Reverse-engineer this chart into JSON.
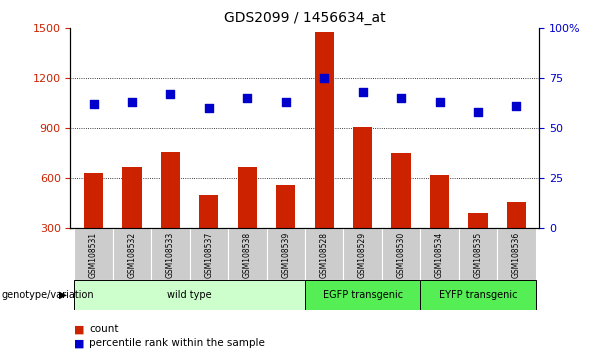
{
  "title": "GDS2099 / 1456634_at",
  "samples": [
    "GSM108531",
    "GSM108532",
    "GSM108533",
    "GSM108537",
    "GSM108538",
    "GSM108539",
    "GSM108528",
    "GSM108529",
    "GSM108530",
    "GSM108534",
    "GSM108535",
    "GSM108536"
  ],
  "counts": [
    630,
    670,
    760,
    500,
    670,
    560,
    1480,
    910,
    750,
    620,
    390,
    460
  ],
  "percentiles": [
    62,
    63,
    67,
    60,
    65,
    63,
    75,
    68,
    65,
    63,
    58,
    61
  ],
  "groups": [
    {
      "label": "wild type",
      "start": 0,
      "end": 6,
      "color": "#ccffcc"
    },
    {
      "label": "EGFP transgenic",
      "start": 6,
      "end": 9,
      "color": "#55ee55"
    },
    {
      "label": "EYFP transgenic",
      "start": 9,
      "end": 12,
      "color": "#55ee55"
    }
  ],
  "ylim_left": [
    300,
    1500
  ],
  "ylim_right": [
    0,
    100
  ],
  "yticks_left": [
    300,
    600,
    900,
    1200,
    1500
  ],
  "yticks_right": [
    0,
    25,
    50,
    75,
    100
  ],
  "bar_color": "#cc2200",
  "dot_color": "#0000cc",
  "grid_color": "#000000",
  "axis_color_left": "#cc2200",
  "axis_color_right": "#0000cc",
  "tick_bg_color": "#cccccc",
  "legend_bar_label": "count",
  "legend_dot_label": "percentile rank within the sample",
  "group_label": "genotype/variation"
}
